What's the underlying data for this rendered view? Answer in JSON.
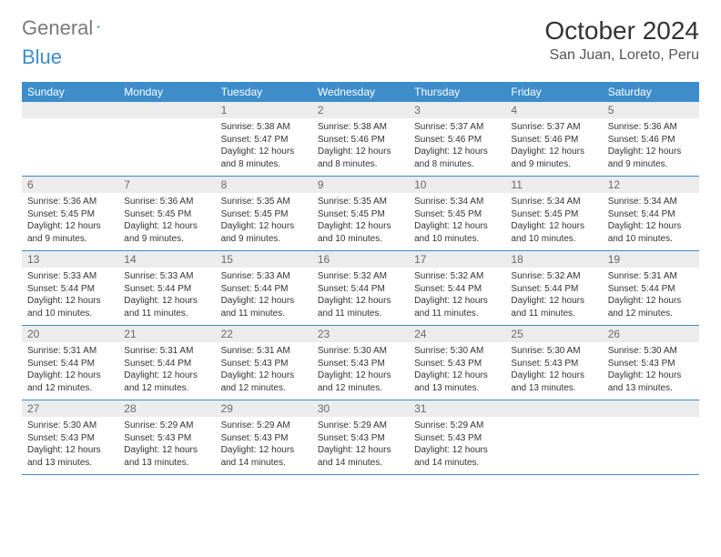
{
  "logo": {
    "text_general": "General",
    "text_blue": "Blue"
  },
  "title": "October 2024",
  "location": "San Juan, Loreto, Peru",
  "colors": {
    "header_bg": "#3d8dcb",
    "header_text": "#ffffff",
    "daynum_bg": "#ececec",
    "daynum_text": "#6a6a6a",
    "body_text": "#333333",
    "row_border": "#3d8dcb"
  },
  "weekdays": [
    "Sunday",
    "Monday",
    "Tuesday",
    "Wednesday",
    "Thursday",
    "Friday",
    "Saturday"
  ],
  "weeks": [
    [
      {
        "empty": true
      },
      {
        "empty": true
      },
      {
        "day": "1",
        "sunrise": "Sunrise: 5:38 AM",
        "sunset": "Sunset: 5:47 PM",
        "daylight": "Daylight: 12 hours and 8 minutes."
      },
      {
        "day": "2",
        "sunrise": "Sunrise: 5:38 AM",
        "sunset": "Sunset: 5:46 PM",
        "daylight": "Daylight: 12 hours and 8 minutes."
      },
      {
        "day": "3",
        "sunrise": "Sunrise: 5:37 AM",
        "sunset": "Sunset: 5:46 PM",
        "daylight": "Daylight: 12 hours and 8 minutes."
      },
      {
        "day": "4",
        "sunrise": "Sunrise: 5:37 AM",
        "sunset": "Sunset: 5:46 PM",
        "daylight": "Daylight: 12 hours and 9 minutes."
      },
      {
        "day": "5",
        "sunrise": "Sunrise: 5:36 AM",
        "sunset": "Sunset: 5:46 PM",
        "daylight": "Daylight: 12 hours and 9 minutes."
      }
    ],
    [
      {
        "day": "6",
        "sunrise": "Sunrise: 5:36 AM",
        "sunset": "Sunset: 5:45 PM",
        "daylight": "Daylight: 12 hours and 9 minutes."
      },
      {
        "day": "7",
        "sunrise": "Sunrise: 5:36 AM",
        "sunset": "Sunset: 5:45 PM",
        "daylight": "Daylight: 12 hours and 9 minutes."
      },
      {
        "day": "8",
        "sunrise": "Sunrise: 5:35 AM",
        "sunset": "Sunset: 5:45 PM",
        "daylight": "Daylight: 12 hours and 9 minutes."
      },
      {
        "day": "9",
        "sunrise": "Sunrise: 5:35 AM",
        "sunset": "Sunset: 5:45 PM",
        "daylight": "Daylight: 12 hours and 10 minutes."
      },
      {
        "day": "10",
        "sunrise": "Sunrise: 5:34 AM",
        "sunset": "Sunset: 5:45 PM",
        "daylight": "Daylight: 12 hours and 10 minutes."
      },
      {
        "day": "11",
        "sunrise": "Sunrise: 5:34 AM",
        "sunset": "Sunset: 5:45 PM",
        "daylight": "Daylight: 12 hours and 10 minutes."
      },
      {
        "day": "12",
        "sunrise": "Sunrise: 5:34 AM",
        "sunset": "Sunset: 5:44 PM",
        "daylight": "Daylight: 12 hours and 10 minutes."
      }
    ],
    [
      {
        "day": "13",
        "sunrise": "Sunrise: 5:33 AM",
        "sunset": "Sunset: 5:44 PM",
        "daylight": "Daylight: 12 hours and 10 minutes."
      },
      {
        "day": "14",
        "sunrise": "Sunrise: 5:33 AM",
        "sunset": "Sunset: 5:44 PM",
        "daylight": "Daylight: 12 hours and 11 minutes."
      },
      {
        "day": "15",
        "sunrise": "Sunrise: 5:33 AM",
        "sunset": "Sunset: 5:44 PM",
        "daylight": "Daylight: 12 hours and 11 minutes."
      },
      {
        "day": "16",
        "sunrise": "Sunrise: 5:32 AM",
        "sunset": "Sunset: 5:44 PM",
        "daylight": "Daylight: 12 hours and 11 minutes."
      },
      {
        "day": "17",
        "sunrise": "Sunrise: 5:32 AM",
        "sunset": "Sunset: 5:44 PM",
        "daylight": "Daylight: 12 hours and 11 minutes."
      },
      {
        "day": "18",
        "sunrise": "Sunrise: 5:32 AM",
        "sunset": "Sunset: 5:44 PM",
        "daylight": "Daylight: 12 hours and 11 minutes."
      },
      {
        "day": "19",
        "sunrise": "Sunrise: 5:31 AM",
        "sunset": "Sunset: 5:44 PM",
        "daylight": "Daylight: 12 hours and 12 minutes."
      }
    ],
    [
      {
        "day": "20",
        "sunrise": "Sunrise: 5:31 AM",
        "sunset": "Sunset: 5:44 PM",
        "daylight": "Daylight: 12 hours and 12 minutes."
      },
      {
        "day": "21",
        "sunrise": "Sunrise: 5:31 AM",
        "sunset": "Sunset: 5:44 PM",
        "daylight": "Daylight: 12 hours and 12 minutes."
      },
      {
        "day": "22",
        "sunrise": "Sunrise: 5:31 AM",
        "sunset": "Sunset: 5:43 PM",
        "daylight": "Daylight: 12 hours and 12 minutes."
      },
      {
        "day": "23",
        "sunrise": "Sunrise: 5:30 AM",
        "sunset": "Sunset: 5:43 PM",
        "daylight": "Daylight: 12 hours and 12 minutes."
      },
      {
        "day": "24",
        "sunrise": "Sunrise: 5:30 AM",
        "sunset": "Sunset: 5:43 PM",
        "daylight": "Daylight: 12 hours and 13 minutes."
      },
      {
        "day": "25",
        "sunrise": "Sunrise: 5:30 AM",
        "sunset": "Sunset: 5:43 PM",
        "daylight": "Daylight: 12 hours and 13 minutes."
      },
      {
        "day": "26",
        "sunrise": "Sunrise: 5:30 AM",
        "sunset": "Sunset: 5:43 PM",
        "daylight": "Daylight: 12 hours and 13 minutes."
      }
    ],
    [
      {
        "day": "27",
        "sunrise": "Sunrise: 5:30 AM",
        "sunset": "Sunset: 5:43 PM",
        "daylight": "Daylight: 12 hours and 13 minutes."
      },
      {
        "day": "28",
        "sunrise": "Sunrise: 5:29 AM",
        "sunset": "Sunset: 5:43 PM",
        "daylight": "Daylight: 12 hours and 13 minutes."
      },
      {
        "day": "29",
        "sunrise": "Sunrise: 5:29 AM",
        "sunset": "Sunset: 5:43 PM",
        "daylight": "Daylight: 12 hours and 14 minutes."
      },
      {
        "day": "30",
        "sunrise": "Sunrise: 5:29 AM",
        "sunset": "Sunset: 5:43 PM",
        "daylight": "Daylight: 12 hours and 14 minutes."
      },
      {
        "day": "31",
        "sunrise": "Sunrise: 5:29 AM",
        "sunset": "Sunset: 5:43 PM",
        "daylight": "Daylight: 12 hours and 14 minutes."
      },
      {
        "empty": true
      },
      {
        "empty": true
      }
    ]
  ]
}
